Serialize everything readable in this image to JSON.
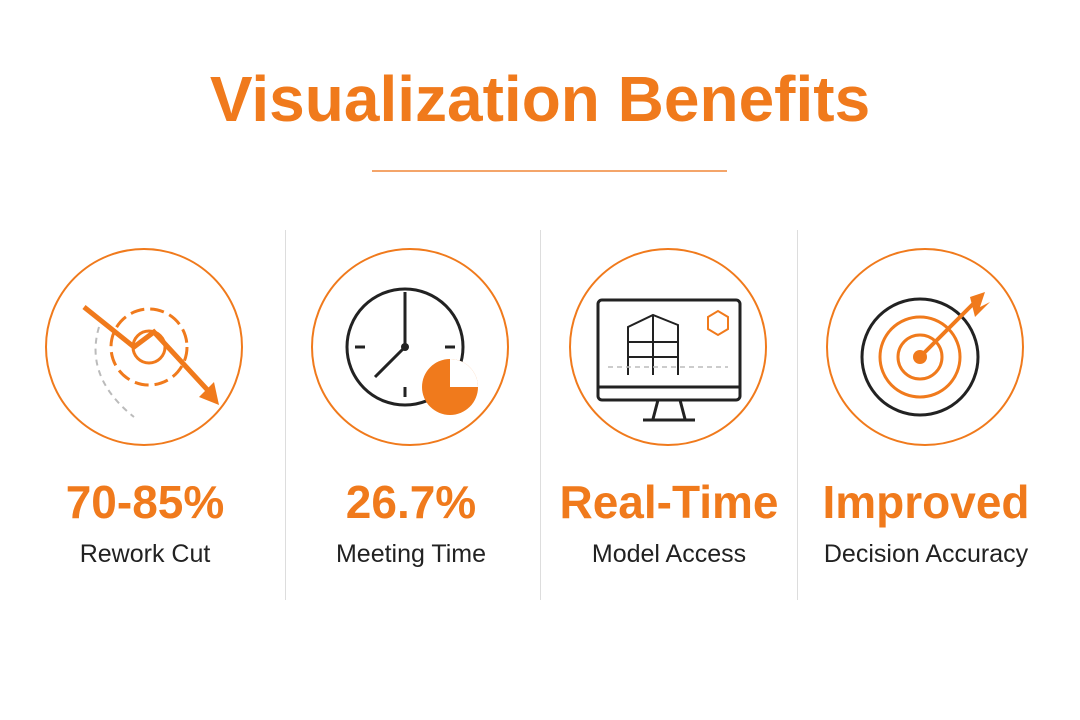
{
  "header": {
    "title": "Visualization Benefits"
  },
  "items": [
    {
      "headline": "70-85%",
      "label": "Rework Cut"
    },
    {
      "headline": "26.7%",
      "label": "Meeting Time"
    },
    {
      "headline": "Real-Time",
      "label": "Model Access"
    },
    {
      "headline": "Improved",
      "label": "Decision Accuracy"
    }
  ]
}
